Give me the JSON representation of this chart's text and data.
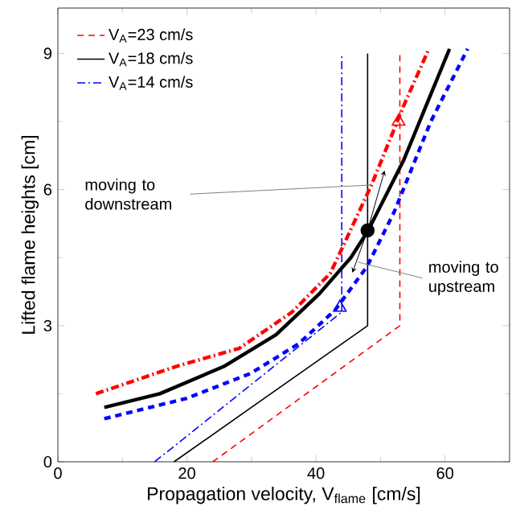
{
  "chart_data": {
    "type": "line",
    "xlabel": "Propagation velocity, V$_{flame}$ [cm/s]",
    "ylabel": "Lifted flame heights [cm]",
    "xlim": [
      0,
      70
    ],
    "ylim": [
      0,
      10
    ],
    "xticks": [
      0,
      20,
      40,
      60
    ],
    "yticks": [
      0,
      3,
      6,
      9
    ],
    "legend": "top left",
    "grid": false,
    "annotations": [
      {
        "text": "moving to downstream",
        "x": 48.5,
        "y": 6.1
      },
      {
        "text": "moving to upstream",
        "x": 46.5,
        "y": 4.4
      }
    ],
    "series": [
      {
        "name": "V$_{A}$=23 cm/s",
        "color": "#ff0000",
        "line_style": "dashed",
        "x": [
          24,
          53,
          53
        ],
        "values": [
          0,
          3,
          9
        ]
      },
      {
        "name": "V$_{A}$=18 cm/s",
        "color": "#000000",
        "line_style": "solid",
        "x": [
          18,
          48,
          48
        ],
        "values": [
          0,
          3,
          9
        ]
      },
      {
        "name": "V$_{A}$=14 cm/s",
        "color": "#0000ff",
        "line_style": "dashdot",
        "x": [
          15,
          44,
          44
        ],
        "values": [
          0,
          3.3,
          9
        ]
      },
      {
        "color": "#ff0000",
        "line_style": "dashdot",
        "x": [
          5.9,
          18.3,
          28.1,
          36.3,
          42.2,
          43.7,
          48.6,
          53.6,
          57.5
        ],
        "values": [
          1.5,
          2.1,
          2.5,
          3.3,
          4.15,
          4.6,
          6.1,
          7.85,
          9.1
        ]
      },
      {
        "color": "#000000",
        "line_style": "solid",
        "x": [
          7.2,
          15.8,
          25.7,
          33.8,
          40.5,
          45.4,
          48.1,
          53.6,
          57.8,
          60.7
        ],
        "values": [
          1.2,
          1.5,
          2.1,
          2.8,
          3.7,
          4.5,
          5.1,
          6.65,
          8.1,
          9.1
        ]
      },
      {
        "color": "#0000ff",
        "line_style": "dashed",
        "x": [
          7.2,
          20,
          29.9,
          37.3,
          43,
          47.9,
          52.1,
          57.8,
          63.5
        ],
        "values": [
          0.95,
          1.4,
          1.95,
          2.6,
          3.35,
          4.3,
          5.5,
          7.5,
          9.1
        ]
      },
      {
        "type": "scatter",
        "color": "#000000",
        "marker": "circle",
        "x": [
          48
        ],
        "values": [
          5.1
        ]
      },
      {
        "type": "scatter",
        "color": "#ff0000",
        "marker": "triangle",
        "x": [
          52.8
        ],
        "values": [
          7.5
        ]
      },
      {
        "type": "scatter",
        "color": "#0000ff",
        "marker": "triangle",
        "x": [
          43.7
        ],
        "values": [
          3.4
        ]
      }
    ]
  }
}
